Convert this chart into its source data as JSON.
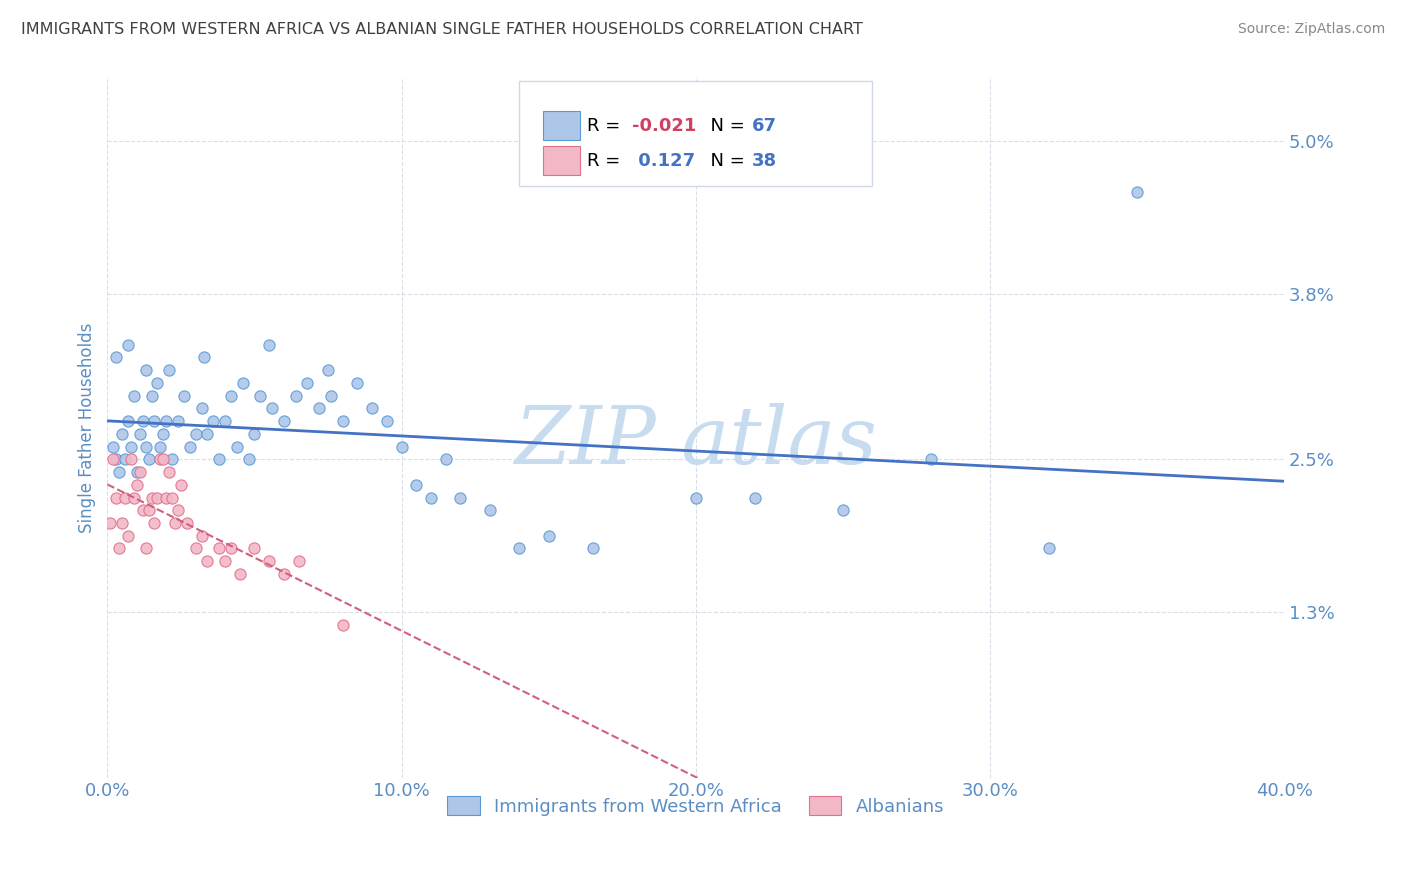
{
  "title": "IMMIGRANTS FROM WESTERN AFRICA VS ALBANIAN SINGLE FATHER HOUSEHOLDS CORRELATION CHART",
  "source": "Source: ZipAtlas.com",
  "ylabel": "Single Father Households",
  "xmin": 0.0,
  "xmax": 0.4,
  "ymin": 0.0,
  "ymax": 0.055,
  "yticks": [
    0.013,
    0.025,
    0.038,
    0.05
  ],
  "ytick_labels": [
    "1.3%",
    "2.5%",
    "3.8%",
    "5.0%"
  ],
  "xticks": [
    0.0,
    0.1,
    0.2,
    0.3,
    0.4
  ],
  "xtick_labels": [
    "0.0%",
    "10.0%",
    "20.0%",
    "30.0%",
    "40.0%"
  ],
  "blue_R": -0.021,
  "blue_N": 67,
  "pink_R": 0.127,
  "pink_N": 38,
  "blue_color": "#aec6e8",
  "pink_color": "#f2b8c6",
  "blue_edge_color": "#5b9bd5",
  "pink_edge_color": "#e07090",
  "blue_line_color": "#4472c4",
  "pink_line_color": "#d06080",
  "grid_color": "#d8dfe8",
  "title_color": "#404040",
  "tick_label_color": "#5b8ec4",
  "ylabel_color": "#5b8ec4",
  "watermark_color": "#c8dcf0",
  "legend_box_color": "#d0d8e8",
  "legend_R_color": "#d04060",
  "legend_N_color": "#4472c4",
  "blue_scatter_x": [
    0.002,
    0.003,
    0.004,
    0.005,
    0.006,
    0.007,
    0.008,
    0.009,
    0.01,
    0.011,
    0.012,
    0.013,
    0.014,
    0.015,
    0.016,
    0.017,
    0.018,
    0.019,
    0.02,
    0.022,
    0.024,
    0.026,
    0.028,
    0.03,
    0.032,
    0.034,
    0.036,
    0.038,
    0.04,
    0.042,
    0.044,
    0.046,
    0.048,
    0.05,
    0.052,
    0.056,
    0.06,
    0.064,
    0.068,
    0.072,
    0.076,
    0.08,
    0.085,
    0.09,
    0.095,
    0.1,
    0.105,
    0.11,
    0.115,
    0.12,
    0.13,
    0.14,
    0.15,
    0.165,
    0.2,
    0.22,
    0.25,
    0.28,
    0.32,
    0.35,
    0.003,
    0.007,
    0.013,
    0.021,
    0.033,
    0.055,
    0.075
  ],
  "blue_scatter_y": [
    0.026,
    0.025,
    0.024,
    0.027,
    0.025,
    0.028,
    0.026,
    0.03,
    0.024,
    0.027,
    0.028,
    0.026,
    0.025,
    0.03,
    0.028,
    0.031,
    0.026,
    0.027,
    0.028,
    0.025,
    0.028,
    0.03,
    0.026,
    0.027,
    0.029,
    0.027,
    0.028,
    0.025,
    0.028,
    0.03,
    0.026,
    0.031,
    0.025,
    0.027,
    0.03,
    0.029,
    0.028,
    0.03,
    0.031,
    0.029,
    0.03,
    0.028,
    0.031,
    0.029,
    0.028,
    0.026,
    0.023,
    0.022,
    0.025,
    0.022,
    0.021,
    0.018,
    0.019,
    0.018,
    0.022,
    0.022,
    0.021,
    0.025,
    0.018,
    0.046,
    0.033,
    0.034,
    0.032,
    0.032,
    0.033,
    0.034,
    0.032
  ],
  "pink_scatter_x": [
    0.001,
    0.002,
    0.003,
    0.004,
    0.005,
    0.006,
    0.007,
    0.008,
    0.009,
    0.01,
    0.011,
    0.012,
    0.013,
    0.014,
    0.015,
    0.016,
    0.017,
    0.018,
    0.019,
    0.02,
    0.021,
    0.022,
    0.023,
    0.024,
    0.025,
    0.027,
    0.03,
    0.032,
    0.034,
    0.038,
    0.04,
    0.042,
    0.045,
    0.05,
    0.055,
    0.06,
    0.065,
    0.08
  ],
  "pink_scatter_y": [
    0.02,
    0.025,
    0.022,
    0.018,
    0.02,
    0.022,
    0.019,
    0.025,
    0.022,
    0.023,
    0.024,
    0.021,
    0.018,
    0.021,
    0.022,
    0.02,
    0.022,
    0.025,
    0.025,
    0.022,
    0.024,
    0.022,
    0.02,
    0.021,
    0.023,
    0.02,
    0.018,
    0.019,
    0.017,
    0.018,
    0.017,
    0.018,
    0.016,
    0.018,
    0.017,
    0.016,
    0.017,
    0.012
  ]
}
